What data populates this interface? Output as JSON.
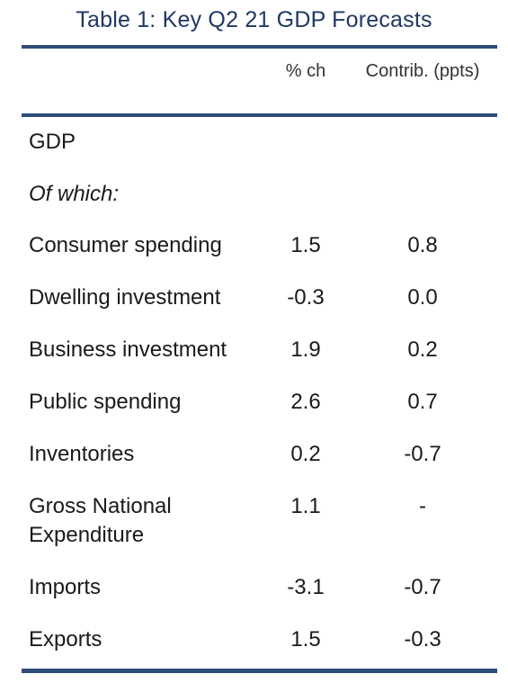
{
  "title": "Table 1: Key Q2 21 GDP Forecasts",
  "columns": {
    "pct_change": "% ch",
    "contribution": "Contrib. (ppts)"
  },
  "sections": {
    "gdp": "GDP",
    "of_which": "Of which:"
  },
  "rows": [
    {
      "label": "Consumer spending",
      "pct": "1.5",
      "contrib": "0.8"
    },
    {
      "label": "Dwelling investment",
      "pct": "-0.3",
      "contrib": "0.0"
    },
    {
      "label": "Business investment",
      "pct": "1.9",
      "contrib": "0.2"
    },
    {
      "label": "Public spending",
      "pct": "2.6",
      "contrib": "0.7"
    },
    {
      "label": "Inventories",
      "pct": "0.2",
      "contrib": "-0.7"
    },
    {
      "label_line1": "Gross National",
      "label_line2": "Expenditure",
      "pct": "1.1",
      "contrib": "-"
    },
    {
      "label": "Imports",
      "pct": "-3.1",
      "contrib": "-0.7"
    },
    {
      "label": "Exports",
      "pct": "1.5",
      "contrib": "-0.3"
    }
  ]
}
